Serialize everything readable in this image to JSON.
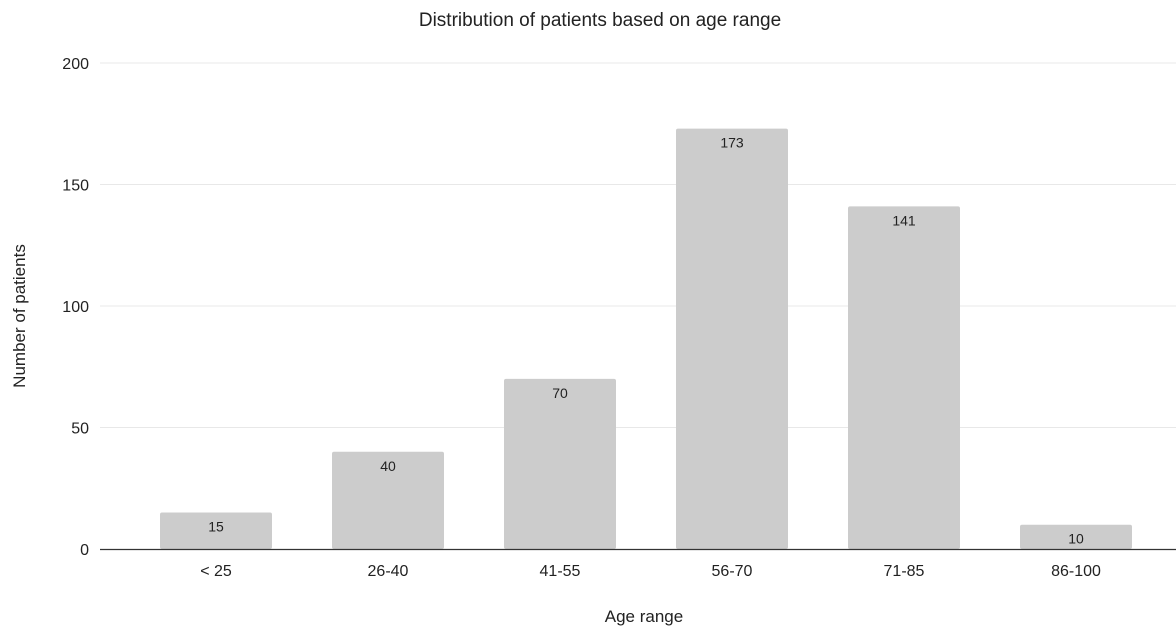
{
  "chart_data": {
    "type": "bar",
    "title": "Distribution of patients based on age range",
    "xlabel": "Age range",
    "ylabel": "Number of patients",
    "categories": [
      "< 25",
      "26-40",
      "41-55",
      "56-70",
      "71-85",
      "86-100"
    ],
    "values": [
      15,
      40,
      70,
      173,
      141,
      10
    ],
    "data_labels": [
      "15",
      "40",
      "70",
      "173",
      "141",
      "10"
    ],
    "ylim": [
      0,
      200
    ],
    "yticks": [
      0,
      50,
      100,
      150,
      200
    ],
    "ytick_labels": [
      "0",
      "50",
      "100",
      "150",
      "200"
    ],
    "grid": true,
    "legend": "none",
    "colors": {
      "bar": "#cccccc",
      "grid": "#e8e8e8",
      "axis": "#333333",
      "text": "#222222"
    }
  }
}
